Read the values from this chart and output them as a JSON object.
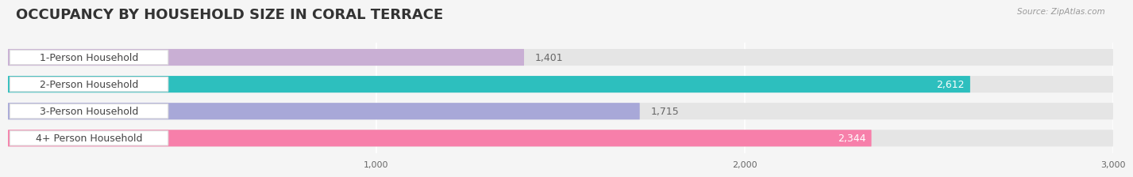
{
  "title": "OCCUPANCY BY HOUSEHOLD SIZE IN CORAL TERRACE",
  "source": "Source: ZipAtlas.com",
  "categories": [
    "1-Person Household",
    "2-Person Household",
    "3-Person Household",
    "4+ Person Household"
  ],
  "values": [
    1401,
    2612,
    1715,
    2344
  ],
  "bar_colors": [
    "#c9afd4",
    "#2dbfbe",
    "#a8a8d8",
    "#f77faa"
  ],
  "value_labels": [
    "1,401",
    "2,612",
    "1,715",
    "2,344"
  ],
  "xlim": [
    0,
    3000
  ],
  "xticks": [
    1000,
    2000,
    3000
  ],
  "xtick_labels": [
    "1,000",
    "2,000",
    "3,000"
  ],
  "background_color": "#f5f5f5",
  "bar_background_color": "#e5e5e5",
  "label_pill_color": "#ffffff",
  "title_fontsize": 13,
  "label_fontsize": 9,
  "value_fontsize": 9,
  "bar_height": 0.62,
  "label_color": "#444444"
}
